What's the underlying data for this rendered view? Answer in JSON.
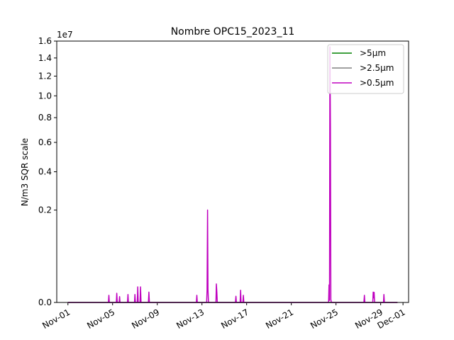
{
  "chart_data": {
    "type": "line",
    "title": "Nombre OPC15_2023_11",
    "xlabel": "",
    "ylabel": "N/m3 SQR scale",
    "y_scale": "sqrt",
    "y_multiplier_label": "1e7",
    "ylim": [
      0,
      1.6
    ],
    "y_ticks": [
      0,
      0.2,
      0.4,
      0.6,
      0.8,
      1.0,
      1.2,
      1.4,
      1.6
    ],
    "y_tick_labels": [
      "0.0",
      "0.2",
      "0.4",
      "0.6",
      "0.8",
      "1.0",
      "1.2",
      "1.4",
      "1.6"
    ],
    "xlim": [
      "2023-10-31T00:00",
      "2023-12-01T12:00"
    ],
    "x_ticks": [
      "2023-11-01",
      "2023-11-05",
      "2023-11-09",
      "2023-11-13",
      "2023-11-17",
      "2023-11-21",
      "2023-11-25",
      "2023-11-29",
      "2023-12-01"
    ],
    "x_tick_labels": [
      "Nov-01",
      "Nov-05",
      "Nov-09",
      "Nov-13",
      "Nov-17",
      "Nov-21",
      "Nov-25",
      "Nov-29",
      "Dec-01"
    ],
    "grid": false,
    "legend_position": "top-right",
    "series": [
      {
        "name": ">5µm",
        "color": "#008000",
        "x": [
          "2023-11-01T00:00",
          "2023-11-30T12:00"
        ],
        "y": [
          0,
          0
        ]
      },
      {
        "name": ">2.5µm",
        "color": "#808080",
        "x": [
          "2023-11-01T00:00",
          "2023-11-30T12:00"
        ],
        "y": [
          0,
          0
        ]
      },
      {
        "name": ">0.5µm",
        "color": "#bf00bf",
        "x": [
          "2023-11-01T00:00",
          "2023-11-04T15:00",
          "2023-11-04T16:00",
          "2023-11-04T17:00",
          "2023-11-05T08:00",
          "2023-11-05T09:00",
          "2023-11-05T10:00",
          "2023-11-05T14:00",
          "2023-11-05T15:00",
          "2023-11-05T16:00",
          "2023-11-06T08:00",
          "2023-11-06T09:00",
          "2023-11-06T10:00",
          "2023-11-06T23:00",
          "2023-11-07T00:00",
          "2023-11-07T01:00",
          "2023-11-07T05:00",
          "2023-11-07T06:00",
          "2023-11-07T07:00",
          "2023-11-07T11:00",
          "2023-11-07T12:00",
          "2023-11-07T13:00",
          "2023-11-08T05:00",
          "2023-11-08T06:00",
          "2023-11-08T07:00",
          "2023-11-12T12:00",
          "2023-11-12T13:00",
          "2023-11-12T14:00",
          "2023-11-13T10:00",
          "2023-11-13T11:00",
          "2023-11-13T12:00",
          "2023-11-13T13:00",
          "2023-11-13T14:00",
          "2023-11-14T06:00",
          "2023-11-14T07:00",
          "2023-11-14T08:00",
          "2023-11-14T09:00",
          "2023-11-16T00:00",
          "2023-11-16T01:00",
          "2023-11-16T02:00",
          "2023-11-16T10:00",
          "2023-11-16T11:00",
          "2023-11-16T12:00",
          "2023-11-16T16:00",
          "2023-11-16T17:00",
          "2023-11-16T18:00",
          "2023-11-24T08:00",
          "2023-11-24T09:00",
          "2023-11-24T10:00",
          "2023-11-24T11:00",
          "2023-11-24T12:00",
          "2023-11-24T13:00",
          "2023-11-24T14:00",
          "2023-11-27T12:00",
          "2023-11-27T13:00",
          "2023-11-27T14:00",
          "2023-11-28T07:00",
          "2023-11-28T08:00",
          "2023-11-28T09:00",
          "2023-11-28T10:00",
          "2023-11-28T11:00",
          "2023-11-29T06:00",
          "2023-11-29T07:00",
          "2023-11-29T08:00",
          "2023-11-30T12:00"
        ],
        "y": [
          0,
          0,
          0.0012,
          0,
          0,
          0.002,
          0,
          0,
          0.0008,
          0,
          0,
          0.0015,
          0,
          0,
          0.0015,
          0,
          0,
          0.0057,
          0,
          0,
          0.0057,
          0,
          0,
          0.0025,
          0,
          0,
          0.0012,
          0,
          0,
          0.0035,
          0.2,
          0.004,
          0,
          0,
          0.008,
          0.0024,
          0,
          0,
          0.0009,
          0,
          0,
          0.0035,
          0,
          0,
          0.0012,
          0,
          0,
          0.0072,
          0.0001,
          1.53,
          0.72,
          0.0002,
          0,
          0,
          0.0012,
          0,
          0,
          0.0025,
          0.0005,
          0.0024,
          0,
          0,
          0.0015,
          0,
          0
        ]
      }
    ]
  }
}
